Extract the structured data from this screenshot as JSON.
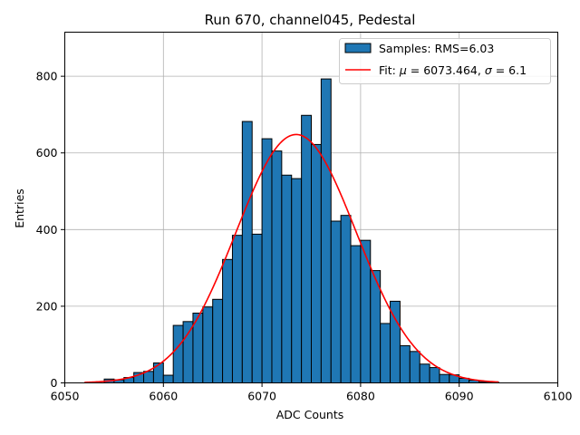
{
  "chart_data": {
    "type": "bar",
    "title": "Run 670, channel045, Pedestal",
    "xlabel": "ADC Counts",
    "ylabel": "Entries",
    "xlim": [
      6050,
      6100
    ],
    "ylim": [
      0,
      915
    ],
    "grid": true,
    "xticks": [
      6050,
      6060,
      6070,
      6080,
      6090,
      6100
    ],
    "yticks": [
      0,
      200,
      400,
      600,
      800
    ],
    "legend_position": "top-right",
    "bin_width": 1,
    "bins": [
      6054,
      6055,
      6056,
      6057,
      6058,
      6059,
      6060,
      6061,
      6062,
      6063,
      6064,
      6065,
      6066,
      6067,
      6068,
      6069,
      6070,
      6071,
      6072,
      6073,
      6074,
      6075,
      6076,
      6077,
      6078,
      6079,
      6080,
      6081,
      6082,
      6083,
      6084,
      6085,
      6086,
      6087,
      6088,
      6089,
      6090,
      6091,
      6092,
      6093
    ],
    "counts": [
      10,
      8,
      14,
      27,
      30,
      52,
      20,
      150,
      160,
      182,
      198,
      218,
      322,
      385,
      682,
      388,
      637,
      605,
      542,
      533,
      698,
      622,
      793,
      422,
      437,
      358,
      372,
      293,
      155,
      213,
      97,
      82,
      49,
      40,
      22,
      21,
      12,
      7,
      3,
      2
    ],
    "series": [
      {
        "name": "Samples: RMS=6.03",
        "kind": "histogram",
        "color": "#1f77b4",
        "edgecolor": "#000000"
      },
      {
        "name": "Fit: μ = 6073.464, σ = 6.1",
        "kind": "gaussian",
        "mu": 6073.464,
        "sigma": 6.1,
        "amplitude": 648,
        "xrange": [
          6052,
          6094
        ],
        "color": "#ff0000"
      }
    ],
    "legend": [
      {
        "prefix": "Samples: RMS=6.03"
      },
      {
        "prefix": "Fit: ",
        "mu_sym": "μ",
        "mu_text": " = 6073.464, ",
        "sigma_sym": "σ",
        "sigma_text": " = 6.1"
      }
    ]
  }
}
